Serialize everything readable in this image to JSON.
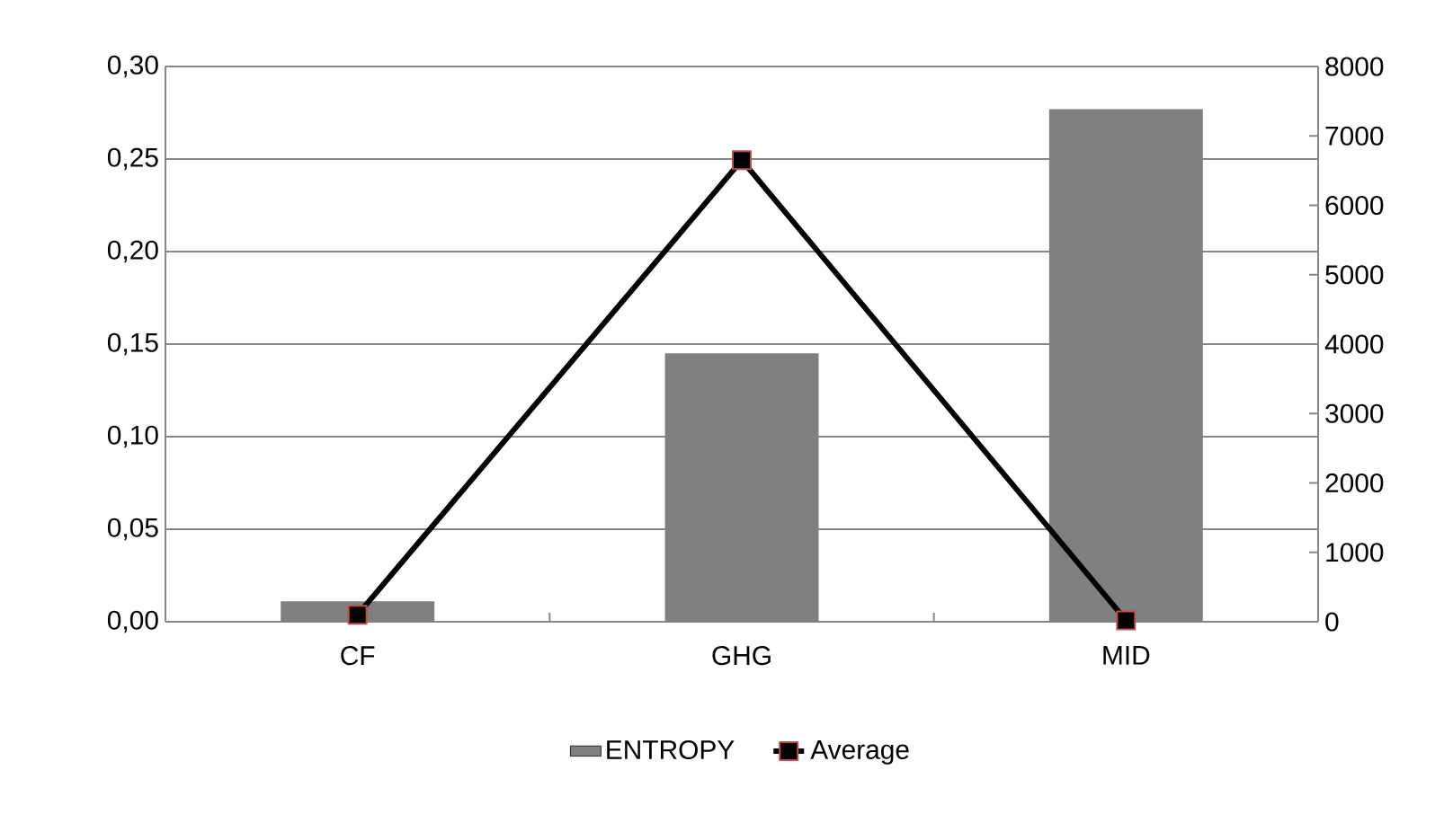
{
  "chart_data": {
    "type": "bar",
    "categories": [
      "CF",
      "GHG",
      "MID"
    ],
    "series": [
      {
        "name": "ENTROPY",
        "color": "#808080",
        "values": [
          0.011,
          0.145,
          0.277
        ]
      },
      {
        "name": "Average",
        "type": "line",
        "axis": "y2",
        "color": "#000000",
        "marker": "square",
        "values": [
          100,
          6650,
          20
        ]
      }
    ],
    "ylim": [
      0,
      0.3
    ],
    "yticks": [
      {
        "value": 0,
        "label": "0,00"
      },
      {
        "value": 0.05,
        "label": "0,05"
      },
      {
        "value": 0.1,
        "label": "0,10"
      },
      {
        "value": 0.15,
        "label": "0,15"
      },
      {
        "value": 0.2,
        "label": "0,20"
      },
      {
        "value": 0.25,
        "label": "0,25"
      },
      {
        "value": 0.3,
        "label": "0,30"
      }
    ],
    "y2lim": [
      0,
      8000
    ],
    "y2ticks": [
      0,
      1000,
      2000,
      3000,
      4000,
      5000,
      6000,
      7000,
      8000
    ],
    "grid": "y",
    "legend": "bottom"
  }
}
